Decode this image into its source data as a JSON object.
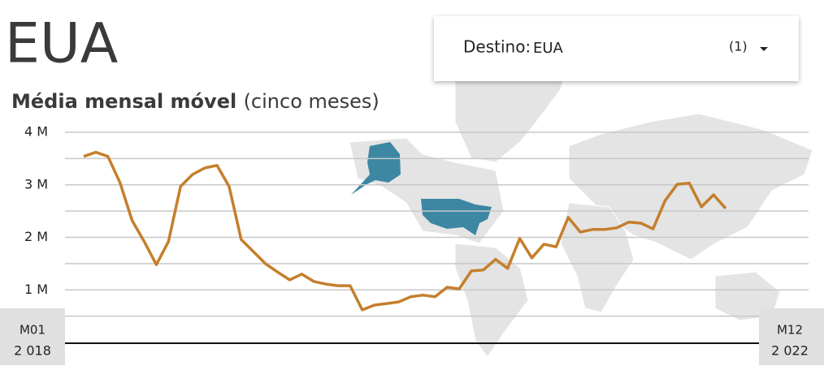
{
  "header": {
    "title": "EUA",
    "filter_label": "Destino:",
    "filter_value": "EUA",
    "filter_count": "(1)"
  },
  "chart_data": {
    "type": "line",
    "title": "Média mensal móvel",
    "title_note": "(cinco meses)",
    "x_start": {
      "month": "M01",
      "year": "2 018"
    },
    "x_end": {
      "month": "M12",
      "year": "2 022"
    },
    "series": [
      {
        "name": "EUA",
        "color": "#c47f2c",
        "values": [
          3.54,
          3.62,
          3.54,
          3.04,
          2.32,
          1.92,
          1.48,
          1.92,
          2.97,
          3.2,
          3.32,
          3.37,
          2.97,
          1.96,
          1.73,
          1.5,
          1.34,
          1.19,
          1.3,
          1.16,
          1.11,
          1.08,
          1.08,
          0.62,
          0.71,
          0.74,
          0.77,
          0.87,
          0.9,
          0.87,
          1.05,
          1.02,
          1.36,
          1.38,
          1.58,
          1.41,
          1.98,
          1.61,
          1.87,
          1.82,
          2.38,
          2.1,
          2.15,
          2.15,
          2.18,
          2.29,
          2.27,
          2.16,
          2.7,
          3.01,
          3.03,
          2.58,
          2.81,
          2.55
        ]
      }
    ],
    "ylim": [
      0,
      4
    ],
    "yticks": [
      {
        "value": 1,
        "label": "1 M"
      },
      {
        "value": 2,
        "label": "2 M"
      },
      {
        "value": 3,
        "label": "3 M"
      },
      {
        "value": 4,
        "label": "4 M"
      }
    ],
    "minor_yticks": [
      0.5,
      1.5,
      2.5,
      3.5
    ],
    "grid": true
  }
}
